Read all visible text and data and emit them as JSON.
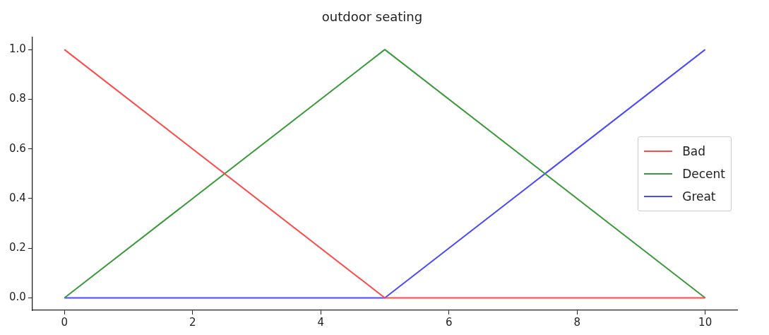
{
  "chart_data": {
    "type": "line",
    "title": "outdoor seating",
    "x": [
      0,
      5,
      10
    ],
    "series": [
      {
        "name": "Bad",
        "color": "#ff4a4a",
        "values": [
          1,
          0,
          0
        ]
      },
      {
        "name": "Decent",
        "color": "#3b9a3b",
        "values": [
          0,
          1,
          0
        ]
      },
      {
        "name": "Great",
        "color": "#4a4aff",
        "values": [
          0,
          0,
          1
        ]
      }
    ],
    "xlim": [
      -0.5,
      10.5
    ],
    "xticks": [
      0,
      2,
      4,
      6,
      8,
      10
    ],
    "ylim": [
      -0.05,
      1.05
    ],
    "yticks": [
      {
        "value": 0,
        "label": "0.0"
      },
      {
        "value": 0.2,
        "label": "0.2"
      },
      {
        "value": 0.4,
        "label": "0.4"
      },
      {
        "value": 0.6,
        "label": "0.6"
      },
      {
        "value": 0.8,
        "label": "0.8"
      },
      {
        "value": 1,
        "label": "1.0"
      }
    ],
    "grid": false,
    "legend": "right",
    "marker": "none",
    "line_style": "solid"
  }
}
